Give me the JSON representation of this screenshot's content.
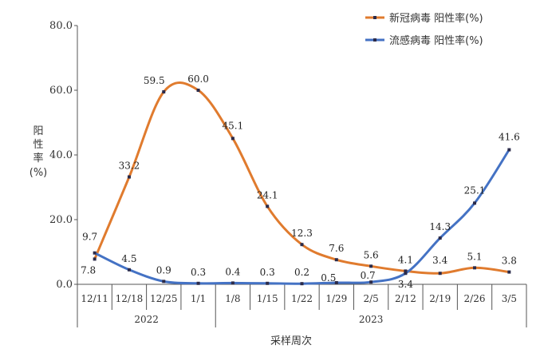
{
  "chart_data": {
    "type": "line",
    "categories": [
      "12/11",
      "12/18",
      "12/25",
      "1/1",
      "1/8",
      "1/15",
      "1/22",
      "1/29",
      "2/5",
      "2/12",
      "2/19",
      "2/26",
      "3/5"
    ],
    "year_groups": [
      {
        "label": "2022",
        "from": 0,
        "to": 3
      },
      {
        "label": "2023",
        "from": 4,
        "to": 12
      }
    ],
    "series": [
      {
        "name": "新冠病毒 阳性率(%)",
        "color": "#E07B2E",
        "values": [
          7.8,
          33.2,
          59.5,
          60.0,
          45.1,
          24.1,
          12.3,
          7.6,
          5.6,
          4.1,
          3.4,
          5.1,
          3.8
        ]
      },
      {
        "name": "流感病毒 阳性率(%)",
        "color": "#4472C4",
        "values": [
          9.7,
          4.5,
          0.9,
          0.3,
          0.4,
          0.3,
          0.2,
          0.5,
          0.7,
          3.4,
          14.3,
          25.1,
          41.6
        ]
      }
    ],
    "ylabel_chars": [
      "阳",
      "性",
      "率",
      "(%)"
    ],
    "xlabel": "采样周次",
    "ylim": [
      0,
      80
    ],
    "yticks": [
      "0.0",
      "20.0",
      "40.0",
      "60.0",
      "80.0"
    ],
    "grid": false,
    "legend_position": "top-right"
  }
}
